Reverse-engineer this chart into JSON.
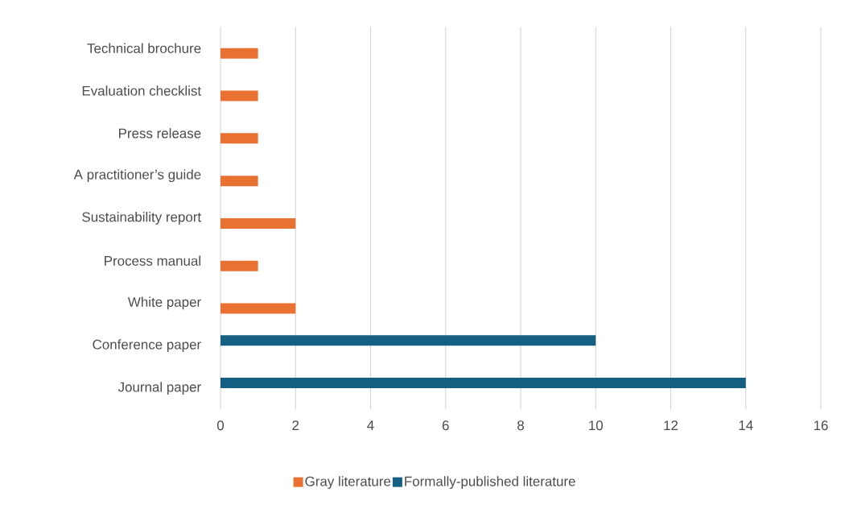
{
  "chart_data": {
    "type": "bar",
    "orientation": "horizontal",
    "categories": [
      "Technical brochure",
      "Evaluation checklist",
      "Press release",
      "A practitioner’s guide",
      "Sustainability report",
      "Process manual",
      "White paper",
      "Conference paper",
      "Journal paper"
    ],
    "series": [
      {
        "name": "Gray literature",
        "color": "#e97132",
        "values": [
          1,
          1,
          1,
          1,
          2,
          1,
          2,
          null,
          null
        ]
      },
      {
        "name": "Formally-published literature",
        "color": "#156082",
        "values": [
          null,
          null,
          null,
          null,
          null,
          null,
          null,
          10,
          14
        ]
      }
    ],
    "xlim": [
      0,
      16
    ],
    "xticks": [
      0,
      2,
      4,
      6,
      8,
      10,
      12,
      14,
      16
    ],
    "grid": "x",
    "legend": "bottom"
  }
}
